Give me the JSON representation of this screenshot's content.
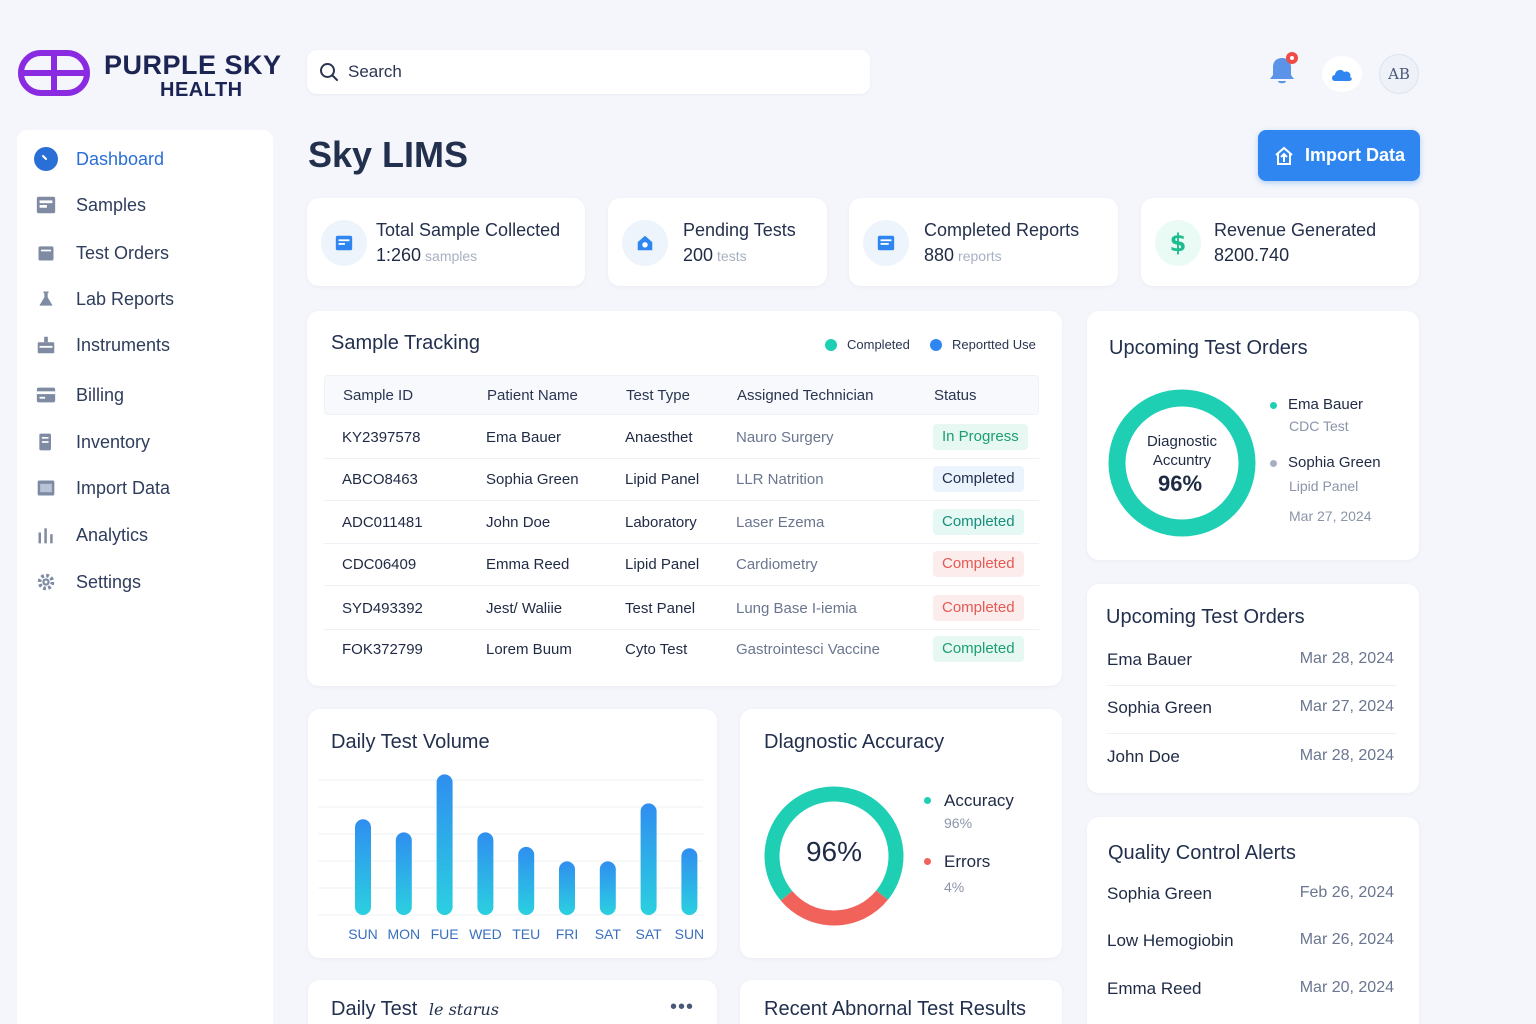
{
  "brand": {
    "name_line1": "PURPLE SKY",
    "name_line2": "HEALTH",
    "colors": {
      "logo": "#8a2be2",
      "accent": "#2f86f0"
    }
  },
  "search": {
    "placeholder": "Search"
  },
  "header": {
    "avatar_initials": "AB"
  },
  "sidebar": {
    "items": [
      {
        "label": "Dashboard",
        "icon": "dashboard-icon",
        "active": true
      },
      {
        "label": "Samples",
        "icon": "samples-icon"
      },
      {
        "label": "Test Orders",
        "icon": "test-orders-icon"
      },
      {
        "label": "Lab Reports",
        "icon": "flask-icon"
      },
      {
        "label": "Instruments",
        "icon": "instrument-icon"
      },
      {
        "label": "Billing",
        "icon": "billing-icon"
      },
      {
        "label": "Inventory",
        "icon": "inventory-icon"
      },
      {
        "label": "Import Data",
        "icon": "import-icon"
      },
      {
        "label": "Analytics",
        "icon": "analytics-icon"
      },
      {
        "label": "Settings",
        "icon": "gear-icon"
      }
    ]
  },
  "page": {
    "title": "Sky LIMS",
    "import_button": "Import Data"
  },
  "stats": [
    {
      "label": "Total Sample Collected",
      "value": "1:260",
      "unit": "samples",
      "icon": "sample-report-icon"
    },
    {
      "label": "Pending Tests",
      "value": "200",
      "unit": "tests",
      "icon": "pending-icon"
    },
    {
      "label": "Completed Reports",
      "value": "880",
      "unit": "reports",
      "icon": "report-icon"
    },
    {
      "label": "Revenue Generated",
      "value": "8200.740",
      "unit": "",
      "icon": "dollar-icon"
    }
  ],
  "sample_tracking": {
    "title": "Sample Tracking",
    "legend": [
      {
        "label": "Completed",
        "color": "#1ecfb4"
      },
      {
        "label": "Reportted Use",
        "color": "#2f86f0"
      }
    ],
    "columns": [
      "Sample ID",
      "Patient Name",
      "Test Type",
      "Assigned Technician",
      "Status"
    ],
    "rows": [
      {
        "id": "KY2397578",
        "patient": "Ema Bauer",
        "test": "Anaesthet",
        "tech": "Nauro Surgery",
        "status": "In Progress",
        "tone": "green"
      },
      {
        "id": "ABCO8463",
        "patient": "Sophia Green",
        "test": "Lipid Panel",
        "tech": "LLR Natrition",
        "status": "Completed",
        "tone": "blue"
      },
      {
        "id": "ADC011481",
        "patient": "John Doe",
        "test": "Laboratory",
        "tech": "Laser Ezema",
        "status": "Completed",
        "tone": "teal"
      },
      {
        "id": "CDC06409",
        "patient": "Emma Reed",
        "test": "Lipid Panel",
        "tech": "Cardiometry",
        "status": "Completed",
        "tone": "red"
      },
      {
        "id": "SYD493392",
        "patient": "Jest/ Waliie",
        "test": "Test Panel",
        "tech": "Lung Base I-iemia",
        "status": "Completed",
        "tone": "red"
      },
      {
        "id": "FOK372799",
        "patient": "Lorem Buum",
        "test": "Cyto Test",
        "tech": "Gastrointesci Vaccine",
        "status": "Completed",
        "tone": "green"
      }
    ]
  },
  "upcoming_donut": {
    "title": "Upcoming Test Orders",
    "center_label_1": "Diagnostic",
    "center_label_2": "Accuntry",
    "center_value": "96%",
    "progress": 1.0,
    "items": [
      {
        "name": "Ema Bauer",
        "sub": "CDC Test",
        "color": "#1ecfb4"
      },
      {
        "name": "Sophia Green",
        "sub": "Lipid Panel",
        "color": "#a7b0c2"
      }
    ],
    "date": "Mar 27, 2024"
  },
  "upcoming_list": {
    "title": "Upcoming Test Orders",
    "rows": [
      {
        "name": "Ema Bauer",
        "date": "Mar 28, 2024"
      },
      {
        "name": "Sophia Green",
        "date": "Mar 27, 2024"
      },
      {
        "name": "John Doe",
        "date": "Mar 28, 2024"
      }
    ]
  },
  "quality_alerts": {
    "title": "Quality Control Alerts",
    "rows": [
      {
        "name": "Sophia Green",
        "date": "Feb 26, 2024"
      },
      {
        "name": "Low Hemogiobin",
        "date": "Mar 26, 2024"
      },
      {
        "name": "Emma Reed",
        "date": "Mar 20, 2024"
      }
    ]
  },
  "daily_volume": {
    "title": "Daily Test Volume",
    "chart_data": {
      "type": "bar",
      "categories": [
        "SUN",
        "MON",
        "FUE",
        "WED",
        "TEU",
        "FRI",
        "SAT",
        "SAT",
        "SUN"
      ],
      "values": [
        66,
        57,
        97,
        57,
        47,
        37,
        37,
        77,
        46
      ],
      "ylim": [
        0,
        100
      ],
      "grid": true,
      "color": "#2f9ef0"
    }
  },
  "diagnostic_accuracy": {
    "title": "Dlagnostic Accuracy",
    "center_value": "96%",
    "chart_data": {
      "type": "pie",
      "categories": [
        "Accuracy",
        "Errors"
      ],
      "values": [
        96,
        4
      ],
      "colors": [
        "#1ecfb4",
        "#f0625a"
      ]
    },
    "legend": [
      {
        "label": "Accuracy",
        "value": "96%",
        "color": "#1ecfb4"
      },
      {
        "label": "Errors",
        "value": "4%",
        "color": "#f0625a"
      }
    ]
  },
  "daily_status": {
    "title": "Daily Test",
    "title_script": "le starus"
  },
  "recent_abnormal": {
    "title": "Recent Abnornal Test Results"
  }
}
